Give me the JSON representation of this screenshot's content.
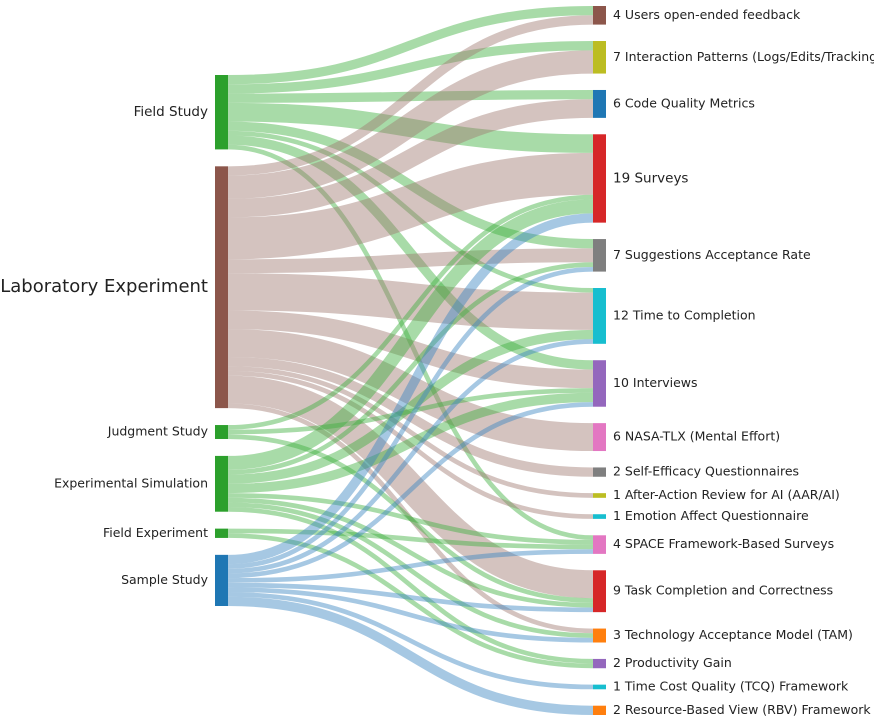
{
  "chart_data": {
    "type": "sankey",
    "nodes": [
      {
        "name": "Field Study",
        "color": "#2ca02c",
        "side": "left"
      },
      {
        "name": "Laboratory Experiment",
        "color": "#8c564b",
        "side": "left"
      },
      {
        "name": "Judgment Study",
        "color": "#2ca02c",
        "side": "left"
      },
      {
        "name": "Experimental Simulation",
        "color": "#2ca02c",
        "side": "left"
      },
      {
        "name": "Field Experiment",
        "color": "#2ca02c",
        "side": "left"
      },
      {
        "name": "Sample Study",
        "color": "#1f77b4",
        "side": "left"
      },
      {
        "name": "4 Users open-ended feedback",
        "color": "#8c564b",
        "side": "right"
      },
      {
        "name": "7 Interaction Patterns (Logs/Edits/Tracking)",
        "color": "#bcbd22",
        "side": "right"
      },
      {
        "name": "6 Code Quality Metrics",
        "color": "#1f77b4",
        "side": "right"
      },
      {
        "name": "19 Surveys",
        "color": "#d62728",
        "side": "right"
      },
      {
        "name": "7 Suggestions Acceptance Rate",
        "color": "#7f7f7f",
        "side": "right"
      },
      {
        "name": "12 Time to Completion",
        "color": "#17becf",
        "side": "right"
      },
      {
        "name": "10 Interviews",
        "color": "#9467bd",
        "side": "right"
      },
      {
        "name": "6 NASA-TLX (Mental Effort)",
        "color": "#e377c2",
        "side": "right"
      },
      {
        "name": "2 Self-Efficacy Questionnaires",
        "color": "#7f7f7f",
        "side": "right"
      },
      {
        "name": "1 After-Action Review for AI (AAR/AI)",
        "color": "#bcbd22",
        "side": "right"
      },
      {
        "name": "1 Emotion Affect Questionnaire",
        "color": "#17becf",
        "side": "right"
      },
      {
        "name": "4 SPACE Framework-Based Surveys",
        "color": "#e377c2",
        "side": "right"
      },
      {
        "name": "9 Task Completion and Correctness",
        "color": "#d62728",
        "side": "right"
      },
      {
        "name": "3 Technology Acceptance Model (TAM)",
        "color": "#ff7f0e",
        "side": "right"
      },
      {
        "name": "2 Productivity Gain",
        "color": "#9467bd",
        "side": "right"
      },
      {
        "name": "1 Time Cost Quality (TCQ) Framework",
        "color": "#17becf",
        "side": "right"
      },
      {
        "name": "2 Resource-Based View (RBV) Framework",
        "color": "#ff7f0e",
        "side": "right"
      }
    ],
    "links": [
      {
        "source": 0,
        "target": 6,
        "value": 2
      },
      {
        "source": 0,
        "target": 7,
        "value": 2
      },
      {
        "source": 0,
        "target": 8,
        "value": 2
      },
      {
        "source": 0,
        "target": 9,
        "value": 4
      },
      {
        "source": 0,
        "target": 10,
        "value": 2
      },
      {
        "source": 0,
        "target": 11,
        "value": 1
      },
      {
        "source": 0,
        "target": 12,
        "value": 2
      },
      {
        "source": 0,
        "target": 17,
        "value": 1
      },
      {
        "source": 1,
        "target": 6,
        "value": 2
      },
      {
        "source": 1,
        "target": 7,
        "value": 5
      },
      {
        "source": 1,
        "target": 8,
        "value": 4
      },
      {
        "source": 1,
        "target": 9,
        "value": 9
      },
      {
        "source": 1,
        "target": 10,
        "value": 3
      },
      {
        "source": 1,
        "target": 11,
        "value": 8
      },
      {
        "source": 1,
        "target": 12,
        "value": 4
      },
      {
        "source": 1,
        "target": 13,
        "value": 6
      },
      {
        "source": 1,
        "target": 14,
        "value": 2
      },
      {
        "source": 1,
        "target": 15,
        "value": 1
      },
      {
        "source": 1,
        "target": 16,
        "value": 1
      },
      {
        "source": 1,
        "target": 18,
        "value": 6
      },
      {
        "source": 1,
        "target": 19,
        "value": 1
      },
      {
        "source": 2,
        "target": 9,
        "value": 1
      },
      {
        "source": 2,
        "target": 12,
        "value": 1
      },
      {
        "source": 2,
        "target": 18,
        "value": 1
      },
      {
        "source": 3,
        "target": 9,
        "value": 3
      },
      {
        "source": 3,
        "target": 10,
        "value": 1
      },
      {
        "source": 3,
        "target": 11,
        "value": 2
      },
      {
        "source": 3,
        "target": 12,
        "value": 2
      },
      {
        "source": 3,
        "target": 17,
        "value": 1
      },
      {
        "source": 3,
        "target": 18,
        "value": 1
      },
      {
        "source": 3,
        "target": 19,
        "value": 1
      },
      {
        "source": 3,
        "target": 20,
        "value": 1
      },
      {
        "source": 4,
        "target": 17,
        "value": 1
      },
      {
        "source": 4,
        "target": 20,
        "value": 1
      },
      {
        "source": 5,
        "target": 9,
        "value": 2
      },
      {
        "source": 5,
        "target": 10,
        "value": 1
      },
      {
        "source": 5,
        "target": 11,
        "value": 1
      },
      {
        "source": 5,
        "target": 12,
        "value": 1
      },
      {
        "source": 5,
        "target": 17,
        "value": 1
      },
      {
        "source": 5,
        "target": 18,
        "value": 1
      },
      {
        "source": 5,
        "target": 19,
        "value": 1
      },
      {
        "source": 5,
        "target": 21,
        "value": 1
      },
      {
        "source": 5,
        "target": 22,
        "value": 2
      }
    ]
  }
}
